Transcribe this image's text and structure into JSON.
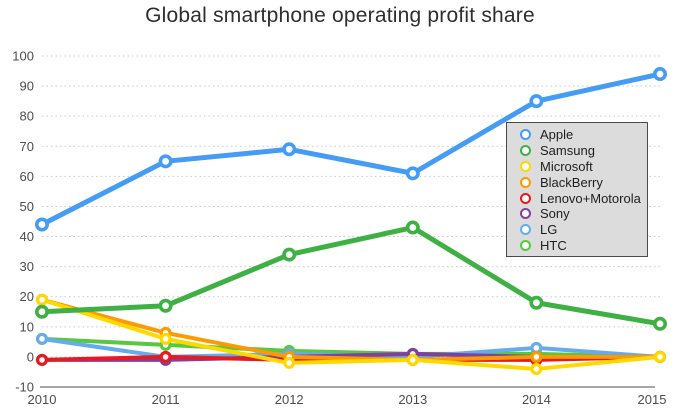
{
  "title": "Global smartphone operating profit share",
  "chart_data": {
    "type": "line",
    "categories": [
      "2010",
      "2011",
      "2012",
      "2013",
      "2014",
      "2015"
    ],
    "series": [
      {
        "name": "Apple",
        "color": "#459CF4",
        "values": [
          44,
          65,
          69,
          61,
          85,
          94
        ]
      },
      {
        "name": "Samsung",
        "color": "#3FB044",
        "values": [
          15,
          17,
          34,
          43,
          18,
          11
        ]
      },
      {
        "name": "Microsoft",
        "color": "#FFD800",
        "values": [
          19,
          6,
          -2,
          -1,
          -4,
          0
        ]
      },
      {
        "name": "BlackBerry",
        "color": "#FD9A00",
        "values": [
          19,
          8,
          0,
          -1,
          0,
          0
        ]
      },
      {
        "name": "Lenovo+Motorola",
        "color": "#E8191F",
        "values": [
          -1,
          0,
          -1,
          -1,
          -1,
          0
        ]
      },
      {
        "name": "Sony",
        "color": "#8040A0",
        "values": [
          -1,
          -1,
          0,
          1,
          0,
          0
        ]
      },
      {
        "name": "LG",
        "color": "#66ACEC",
        "values": [
          6,
          0,
          1,
          0,
          3,
          0
        ]
      },
      {
        "name": "HTC",
        "color": "#58C93E",
        "values": [
          6,
          4,
          2,
          1,
          1,
          0
        ]
      }
    ],
    "ylim": [
      -10,
      100
    ],
    "y_ticks": [
      100,
      90,
      80,
      70,
      60,
      50,
      40,
      30,
      20,
      10,
      0,
      -10
    ],
    "grid": "dotted-horizontal",
    "legend_position": "inside-right"
  },
  "colors": {
    "background": "#ffffff",
    "grid": "#c9c9c9",
    "axis": "#8a8a8a",
    "tick_label": "#4d4d4d",
    "title": "#2e2e2e",
    "legend_bg": "#dcdcdc",
    "legend_border": "#4a4a4a"
  }
}
